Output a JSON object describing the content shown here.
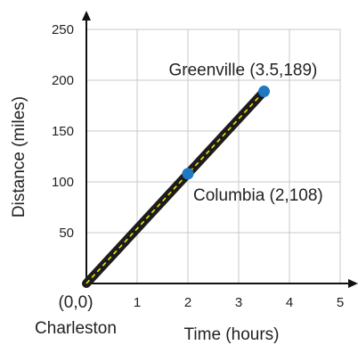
{
  "chart_data": {
    "type": "line",
    "title": "",
    "xlabel": "Time (hours)",
    "ylabel": "Distance (miles)",
    "xlim": [
      0,
      5
    ],
    "ylim": [
      0,
      250
    ],
    "x_ticks": [
      1,
      2,
      3,
      4,
      5
    ],
    "y_ticks": [
      50,
      100,
      150,
      200,
      250
    ],
    "grid": true,
    "series": [
      {
        "x": [
          0,
          3.5
        ],
        "y": [
          0,
          189
        ],
        "line_color": "#1c1c1c",
        "center_dash_color": "#f2e600"
      }
    ],
    "points": [
      {
        "x": 0,
        "y": 0,
        "label": "(0,0)",
        "sublabel": "Charleston",
        "marker": false
      },
      {
        "x": 2,
        "y": 108,
        "label": "Columbia (2,108)",
        "marker": true,
        "color": "#1f78c1"
      },
      {
        "x": 3.5,
        "y": 189,
        "label": "Greenville (3.5,189)",
        "marker": true,
        "color": "#1f78c1"
      }
    ]
  }
}
